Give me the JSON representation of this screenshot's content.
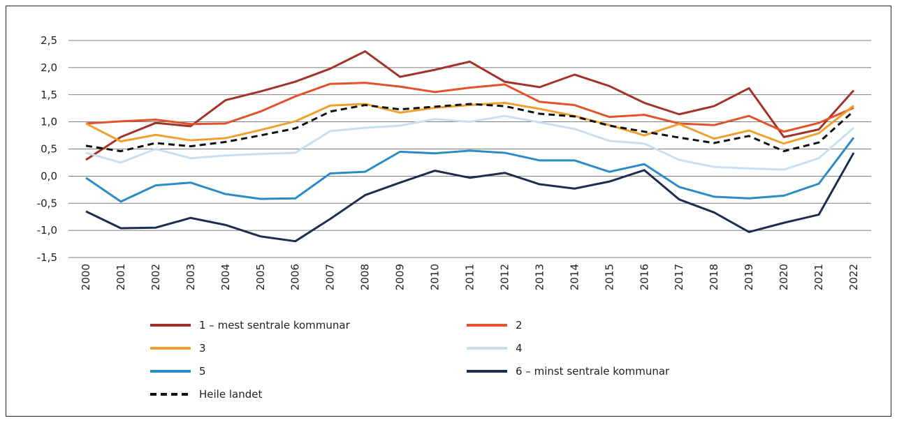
{
  "chart_data": {
    "type": "line",
    "categories": [
      "2000",
      "2001",
      "2002",
      "2003",
      "2004",
      "2005",
      "2006",
      "2007",
      "2008",
      "2009",
      "2010",
      "2011",
      "2012",
      "2013",
      "2014",
      "2015",
      "2016",
      "2017",
      "2018",
      "2019",
      "2020",
      "2021",
      "2022"
    ],
    "ylim": [
      -1.5,
      2.5
    ],
    "yticks": [
      {
        "value": -1.5,
        "label": "-1,5"
      },
      {
        "value": -1.0,
        "label": "-1,0"
      },
      {
        "value": -0.5,
        "label": "-0,5"
      },
      {
        "value": 0,
        "label": "0,0"
      },
      {
        "value": 0.5,
        "label": "0,5"
      },
      {
        "value": 1.0,
        "label": "1,0"
      },
      {
        "value": 1.5,
        "label": "1,5"
      },
      {
        "value": 2.0,
        "label": "2,0"
      },
      {
        "value": 2.5,
        "label": "2,5"
      }
    ],
    "grid": true,
    "series": [
      {
        "name": "1 – mest sentrale kommunar",
        "color": "#a3332a",
        "style": "solid",
        "values": [
          0.3,
          0.72,
          0.98,
          0.92,
          1.4,
          1.56,
          1.74,
          1.98,
          2.3,
          1.83,
          1.96,
          2.11,
          1.74,
          1.64,
          1.87,
          1.66,
          1.35,
          1.14,
          1.29,
          1.62,
          0.72,
          0.86,
          1.58
        ]
      },
      {
        "name": "2",
        "color": "#e2522b",
        "style": "solid",
        "values": [
          0.97,
          1.01,
          1.04,
          0.96,
          0.97,
          1.19,
          1.47,
          1.7,
          1.72,
          1.65,
          1.55,
          1.63,
          1.69,
          1.37,
          1.31,
          1.09,
          1.13,
          0.97,
          0.94,
          1.11,
          0.82,
          0.98,
          1.26
        ]
      },
      {
        "name": "3",
        "color": "#f0a02e",
        "style": "solid",
        "values": [
          0.97,
          0.64,
          0.76,
          0.66,
          0.7,
          0.85,
          1.01,
          1.3,
          1.33,
          1.17,
          1.26,
          1.31,
          1.35,
          1.24,
          1.11,
          0.94,
          0.75,
          0.96,
          0.69,
          0.84,
          0.6,
          0.79,
          1.3
        ]
      },
      {
        "name": "4",
        "color": "#c9dff0",
        "style": "solid",
        "values": [
          0.43,
          0.25,
          0.5,
          0.33,
          0.38,
          0.41,
          0.43,
          0.83,
          0.89,
          0.93,
          1.05,
          1.0,
          1.11,
          0.99,
          0.87,
          0.65,
          0.6,
          0.3,
          0.17,
          0.14,
          0.12,
          0.33,
          0.89
        ]
      },
      {
        "name": "5",
        "color": "#2c8bc5",
        "style": "solid",
        "values": [
          -0.03,
          -0.47,
          -0.17,
          -0.12,
          -0.33,
          -0.42,
          -0.41,
          0.05,
          0.08,
          0.45,
          0.42,
          0.47,
          0.43,
          0.29,
          0.29,
          0.08,
          0.22,
          -0.2,
          -0.38,
          -0.41,
          -0.36,
          -0.14,
          0.71
        ]
      },
      {
        "name": "6 – minst sentrale kommunar",
        "color": "#1d2d4f",
        "style": "solid",
        "values": [
          -0.65,
          -0.96,
          -0.95,
          -0.77,
          -0.9,
          -1.11,
          -1.2,
          -0.79,
          -0.35,
          -0.12,
          0.1,
          -0.03,
          0.06,
          -0.15,
          -0.23,
          -0.1,
          0.11,
          -0.43,
          -0.67,
          -1.03,
          -0.86,
          -0.71,
          0.43
        ]
      },
      {
        "name": "Heile landet",
        "color": "#111111",
        "style": "dashed",
        "values": [
          0.56,
          0.46,
          0.61,
          0.55,
          0.63,
          0.75,
          0.88,
          1.19,
          1.31,
          1.23,
          1.28,
          1.33,
          1.29,
          1.15,
          1.1,
          0.93,
          0.82,
          0.71,
          0.61,
          0.74,
          0.46,
          0.62,
          1.2
        ]
      }
    ]
  }
}
